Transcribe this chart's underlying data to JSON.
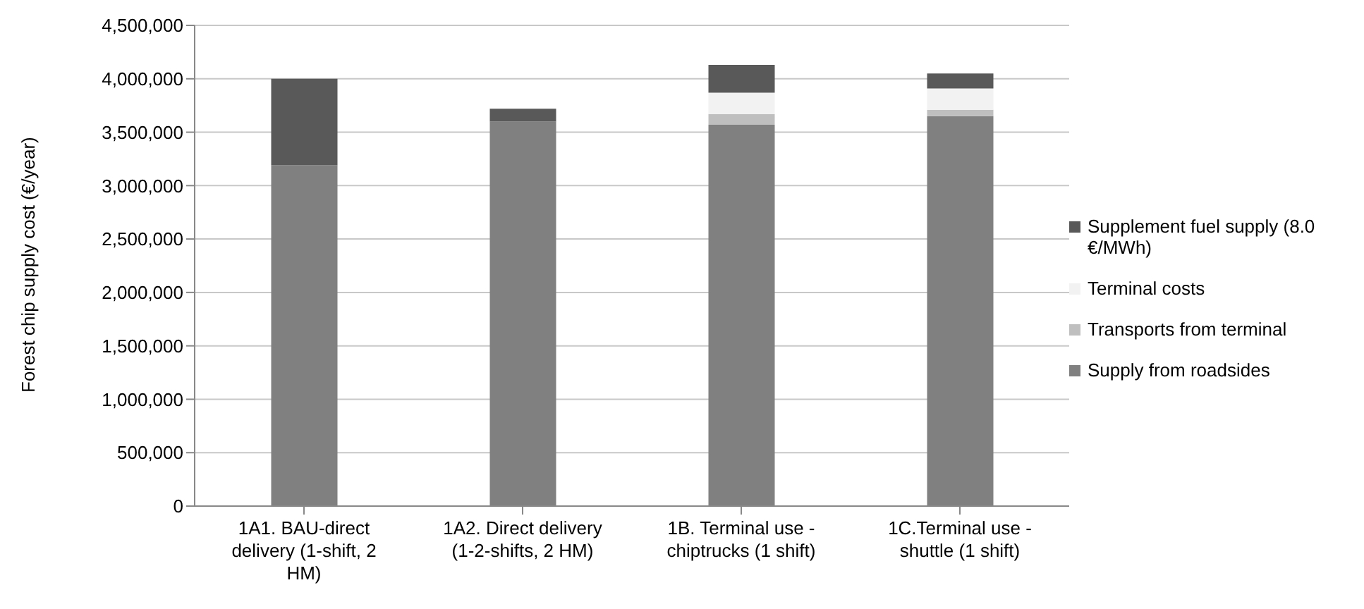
{
  "chart_data": {
    "type": "bar",
    "stacked": true,
    "ylabel": "Forest chip supply cost (€/year)",
    "categories": [
      "1A1. BAU-direct delivery (1-shift, 2 HM)",
      "1A2. Direct delivery (1-2-shifts, 2 HM)",
      "1B. Terminal use - chiptrucks (1 shift)",
      "1C.Terminal use - shuttle (1 shift)"
    ],
    "series": [
      {
        "name": "Supply from roadsides",
        "color": "#808080",
        "values": [
          3190000,
          3600000,
          3570000,
          3650000
        ]
      },
      {
        "name": "Transports from terminal",
        "color": "#bfbfbf",
        "values": [
          0,
          0,
          100000,
          60000
        ]
      },
      {
        "name": "Terminal costs",
        "color": "#f2f2f2",
        "values": [
          0,
          0,
          200000,
          200000
        ]
      },
      {
        "name": "Supplement fuel supply (8.0 €/MWh)",
        "color": "#595959",
        "values": [
          810000,
          120000,
          260000,
          140000
        ]
      }
    ],
    "ylim": [
      0,
      4500000
    ],
    "yticks": [
      {
        "value": 0,
        "label": "0"
      },
      {
        "value": 500000,
        "label": "500,000"
      },
      {
        "value": 1000000,
        "label": "1,000,000"
      },
      {
        "value": 1500000,
        "label": "1,500,000"
      },
      {
        "value": 2000000,
        "label": "2,000,000"
      },
      {
        "value": 2500000,
        "label": "2,500,000"
      },
      {
        "value": 3000000,
        "label": "3,000,000"
      },
      {
        "value": 3500000,
        "label": "3,500,000"
      },
      {
        "value": 4000000,
        "label": "4,000,000"
      },
      {
        "value": 4500000,
        "label": "4,500,000"
      }
    ],
    "grid": "y",
    "legend": "right"
  }
}
